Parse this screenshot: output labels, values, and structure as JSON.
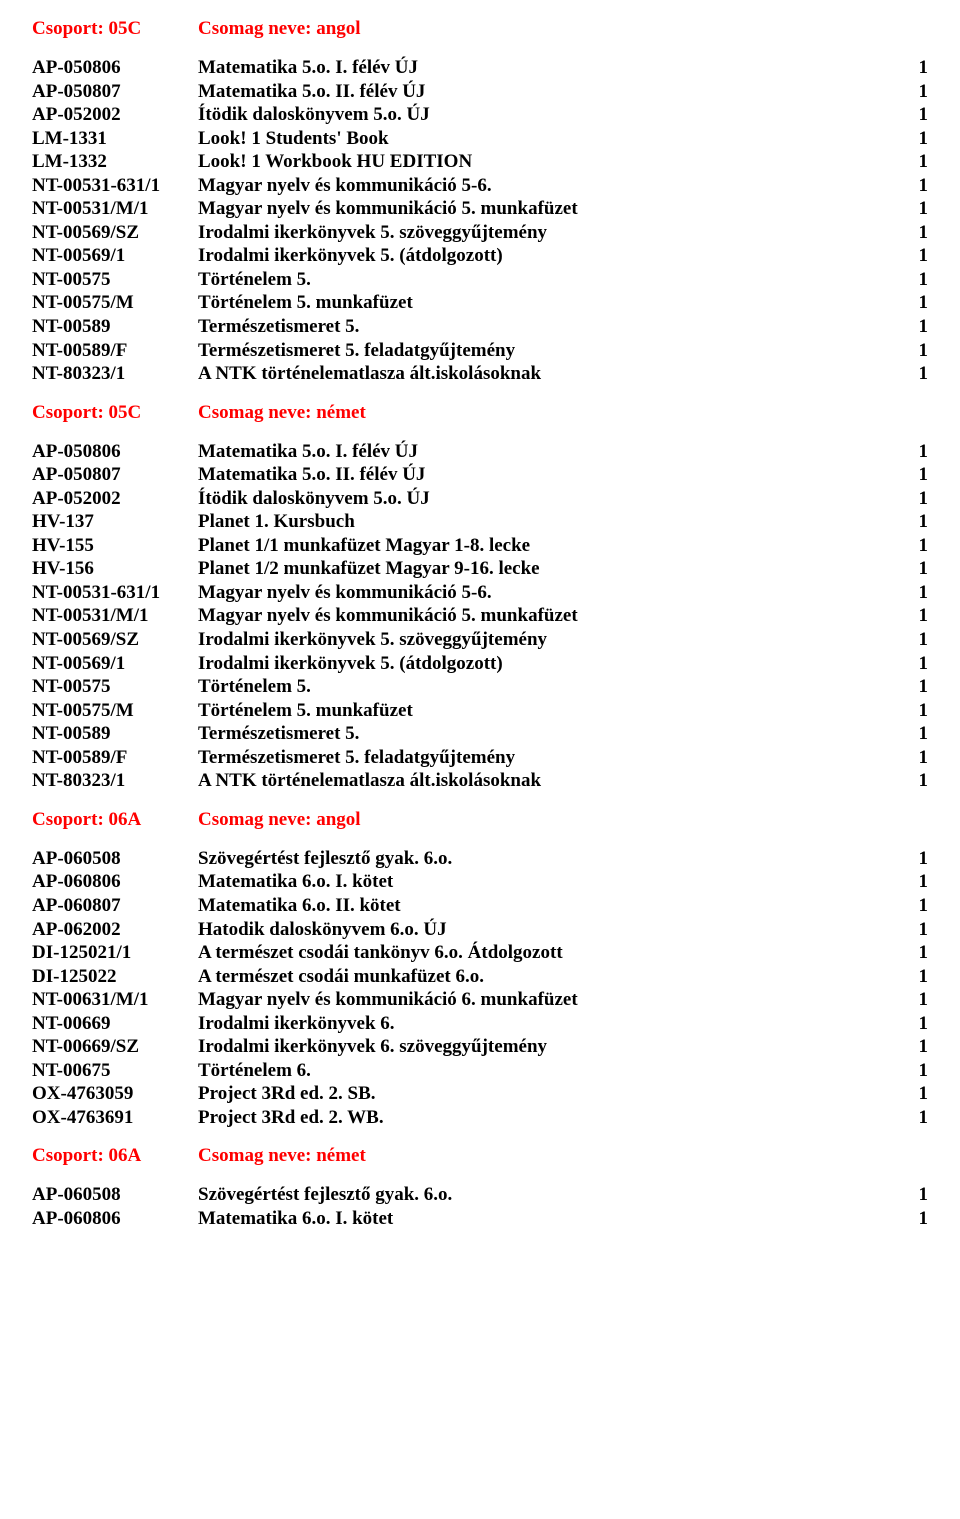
{
  "sections": [
    {
      "group": "Csoport: 05C",
      "package": "Csomag neve: angol",
      "rows": [
        {
          "code": "AP-050806",
          "title": "Matematika 5.o. I. félév ÚJ",
          "qty": "1"
        },
        {
          "code": "AP-050807",
          "title": "Matematika 5.o. II. félév ÚJ",
          "qty": "1"
        },
        {
          "code": "AP-052002",
          "title": "Ítödik daloskönyvem 5.o. ÚJ",
          "qty": "1"
        },
        {
          "code": "LM-1331",
          "title": "Look! 1 Students' Book",
          "qty": "1"
        },
        {
          "code": "LM-1332",
          "title": "Look! 1 Workbook HU EDITION",
          "qty": "1"
        },
        {
          "code": "NT-00531-631/1",
          "title": "Magyar nyelv és kommunikáció 5-6.",
          "qty": "1"
        },
        {
          "code": "NT-00531/M/1",
          "title": "Magyar nyelv és kommunikáció 5. munkafüzet",
          "qty": "1"
        },
        {
          "code": "NT-00569/SZ",
          "title": "Irodalmi ikerkönyvek 5. szöveggyűjtemény",
          "qty": "1"
        },
        {
          "code": "NT-00569/1",
          "title": "Irodalmi ikerkönyvek 5. (átdolgozott)",
          "qty": "1"
        },
        {
          "code": "NT-00575",
          "title": "Történelem 5.",
          "qty": "1"
        },
        {
          "code": "NT-00575/M",
          "title": "Történelem 5. munkafüzet",
          "qty": "1"
        },
        {
          "code": "NT-00589",
          "title": "Természetismeret 5.",
          "qty": "1"
        },
        {
          "code": "NT-00589/F",
          "title": "Természetismeret 5. feladatgyűjtemény",
          "qty": "1"
        },
        {
          "code": "NT-80323/1",
          "title": "A NTK történelematlasza ált.iskolásoknak",
          "qty": "1"
        }
      ]
    },
    {
      "group": "Csoport: 05C",
      "package": "Csomag neve: német",
      "rows": [
        {
          "code": "AP-050806",
          "title": "Matematika 5.o. I. félév ÚJ",
          "qty": "1"
        },
        {
          "code": "AP-050807",
          "title": "Matematika 5.o. II. félév ÚJ",
          "qty": "1"
        },
        {
          "code": "AP-052002",
          "title": "Ítödik daloskönyvem 5.o. ÚJ",
          "qty": "1"
        },
        {
          "code": "HV-137",
          "title": "Planet 1. Kursbuch",
          "qty": "1"
        },
        {
          "code": "HV-155",
          "title": "Planet 1/1 munkafüzet Magyar 1-8. lecke",
          "qty": "1"
        },
        {
          "code": "HV-156",
          "title": "Planet 1/2 munkafüzet Magyar 9-16. lecke",
          "qty": "1"
        },
        {
          "code": "NT-00531-631/1",
          "title": "Magyar nyelv és kommunikáció 5-6.",
          "qty": "1"
        },
        {
          "code": "NT-00531/M/1",
          "title": "Magyar nyelv és kommunikáció 5. munkafüzet",
          "qty": "1"
        },
        {
          "code": "NT-00569/SZ",
          "title": "Irodalmi ikerkönyvek 5. szöveggyűjtemény",
          "qty": "1"
        },
        {
          "code": "NT-00569/1",
          "title": "Irodalmi ikerkönyvek 5. (átdolgozott)",
          "qty": "1"
        },
        {
          "code": "NT-00575",
          "title": "Történelem 5.",
          "qty": "1"
        },
        {
          "code": "NT-00575/M",
          "title": "Történelem 5. munkafüzet",
          "qty": "1"
        },
        {
          "code": "NT-00589",
          "title": "Természetismeret 5.",
          "qty": "1"
        },
        {
          "code": "NT-00589/F",
          "title": "Természetismeret 5. feladatgyűjtemény",
          "qty": "1"
        },
        {
          "code": "NT-80323/1",
          "title": "A NTK történelematlasza ált.iskolásoknak",
          "qty": "1"
        }
      ]
    },
    {
      "group": "Csoport: 06A",
      "package": "Csomag neve: angol",
      "rows": [
        {
          "code": "AP-060508",
          "title": "Szövegértést fejlesztő gyak. 6.o.",
          "qty": "1"
        },
        {
          "code": "AP-060806",
          "title": "Matematika 6.o. I. kötet",
          "qty": "1"
        },
        {
          "code": "AP-060807",
          "title": "Matematika 6.o. II. kötet",
          "qty": "1"
        },
        {
          "code": "AP-062002",
          "title": "Hatodik daloskönyvem 6.o. ÚJ",
          "qty": "1"
        },
        {
          "code": "DI-125021/1",
          "title": "A természet csodái tankönyv 6.o. Átdolgozott",
          "qty": "1"
        },
        {
          "code": "DI-125022",
          "title": "A természet csodái munkafüzet 6.o.",
          "qty": "1"
        },
        {
          "code": "NT-00631/M/1",
          "title": "Magyar nyelv és kommunikáció 6. munkafüzet",
          "qty": "1"
        },
        {
          "code": "NT-00669",
          "title": "Irodalmi ikerkönyvek 6.",
          "qty": "1"
        },
        {
          "code": "NT-00669/SZ",
          "title": "Irodalmi ikerkönyvek 6. szöveggyűjtemény",
          "qty": "1"
        },
        {
          "code": "NT-00675",
          "title": "Történelem 6.",
          "qty": "1"
        },
        {
          "code": "OX-4763059",
          "title": "Project 3Rd ed. 2. SB.",
          "qty": "1"
        },
        {
          "code": "OX-4763691",
          "title": "Project 3Rd ed. 2. WB.",
          "qty": "1"
        }
      ]
    },
    {
      "group": "Csoport: 06A",
      "package": "Csomag neve: német",
      "rows": [
        {
          "code": "AP-060508",
          "title": "Szövegértést fejlesztő gyak. 6.o.",
          "qty": "1"
        },
        {
          "code": "AP-060806",
          "title": "Matematika 6.o. I. kötet",
          "qty": "1"
        }
      ]
    }
  ]
}
